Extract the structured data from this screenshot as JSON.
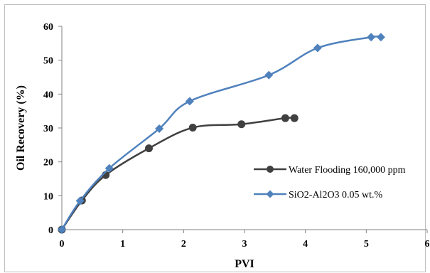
{
  "chart_data": {
    "type": "line",
    "title": "",
    "xlabel": "PVI",
    "ylabel": "Oil Recovery (%)",
    "xlim": [
      0,
      6
    ],
    "ylim": [
      0,
      60
    ],
    "xticks": [
      "0",
      "1",
      "2",
      "3",
      "4",
      "5",
      "6"
    ],
    "yticks": [
      "0",
      "10",
      "20",
      "30",
      "40",
      "50",
      "60"
    ],
    "grid": {
      "horizontal": false,
      "vertical": false
    },
    "legend_position": "right-middle",
    "series": [
      {
        "name": "Water Flooding 160,000 ppm",
        "color": "#404040",
        "marker": "circle",
        "x": [
          0,
          0.33,
          0.72,
          1.43,
          2.15,
          2.95,
          3.67,
          3.82
        ],
        "y": [
          0,
          8.6,
          16.1,
          24,
          30.1,
          31.1,
          32.9,
          32.9
        ]
      },
      {
        "name": "SiO2-Al2O3 0.05 wt.%",
        "color": "#4f81bd",
        "marker": "diamond",
        "x": [
          0,
          0.3,
          0.78,
          1.6,
          2.1,
          3.4,
          4.2,
          5.08,
          5.24
        ],
        "y": [
          0,
          8.5,
          18.1,
          29.8,
          37.9,
          45.6,
          53.6,
          56.8,
          56.8
        ]
      }
    ]
  }
}
